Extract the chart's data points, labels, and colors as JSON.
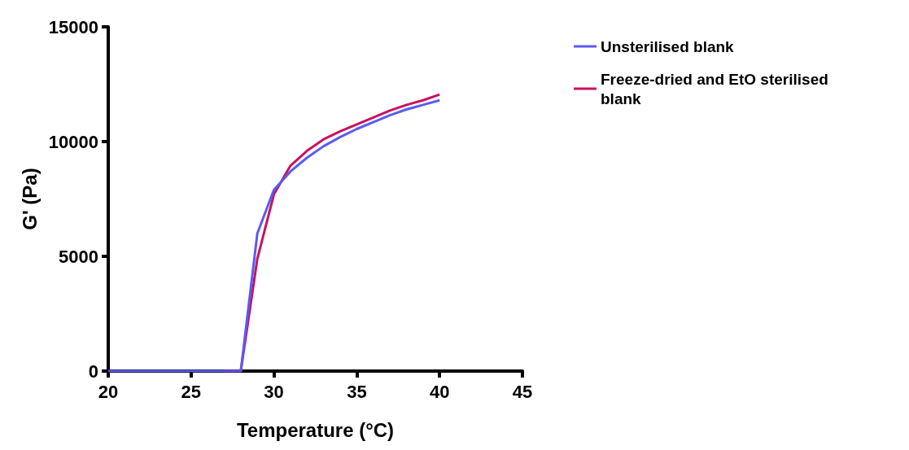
{
  "chart_data": {
    "type": "line",
    "xlabel": "Temperature (°C)",
    "ylabel": "G' (Pa)",
    "x": [
      20,
      21,
      22,
      23,
      24,
      25,
      26,
      27,
      28,
      29,
      30,
      31,
      32,
      33,
      34,
      35,
      36,
      37,
      38,
      39,
      40
    ],
    "series": [
      {
        "name": "Unsterilised blank",
        "color": "#5b5bf0",
        "values": [
          0,
          0,
          0,
          0,
          0,
          0,
          0,
          0,
          0,
          6000,
          7900,
          8700,
          9300,
          9800,
          10200,
          10550,
          10850,
          11150,
          11400,
          11600,
          11800
        ]
      },
      {
        "name": "Freeze-dried and EtO sterilised blank",
        "color": "#c8125e",
        "values": [
          null,
          null,
          null,
          null,
          null,
          null,
          null,
          0,
          0,
          4900,
          7700,
          8950,
          9600,
          10100,
          10450,
          10750,
          11050,
          11350,
          11600,
          11800,
          12050
        ]
      }
    ],
    "xlim": [
      20,
      45
    ],
    "xticks": [
      20,
      25,
      30,
      35,
      40,
      45
    ],
    "ylim": [
      0,
      15000
    ],
    "yticks": [
      0,
      5000,
      10000,
      15000
    ],
    "grid": false,
    "legend": "top right",
    "marker": "none",
    "line_style": "solid"
  }
}
